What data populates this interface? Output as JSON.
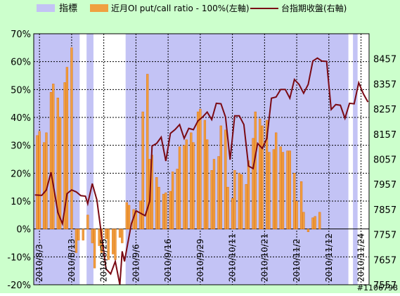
{
  "watermark": "#1106798",
  "colors": {
    "background": "#CCFFCC",
    "plot_background": "#FFFFFF",
    "indicator_band": "#C3C3F5",
    "bar": "#F0A040",
    "bar_edge": "#E07010",
    "line": "#7A0A14",
    "grid": "#000000",
    "text": "#000000"
  },
  "chart_data": {
    "type": "bar+line",
    "legend": {
      "position": "top",
      "entries": [
        {
          "label": "指標",
          "kind": "area"
        },
        {
          "label": "近月OI put/call ratio - 100%(左軸)",
          "kind": "bar"
        },
        {
          "label": "台指期收盤(右軸)",
          "kind": "line"
        }
      ]
    },
    "y_left": {
      "min": -20,
      "max": 70,
      "step": 10,
      "ticks": [
        "-20%",
        "-10%",
        "0%",
        "10%",
        "20%",
        "30%",
        "40%",
        "50%",
        "60%",
        "70%"
      ]
    },
    "y_right": {
      "min": 7557,
      "max": 8557,
      "step": 100,
      "ticks": [
        "7557",
        "7657",
        "7757",
        "7857",
        "7957",
        "8057",
        "8157",
        "8257",
        "8357",
        "8457"
      ]
    },
    "x_labels": [
      {
        "index": 2,
        "text": "2010/8/3"
      },
      {
        "index": 16,
        "text": "2010/8/13"
      },
      {
        "index": 30,
        "text": "2010/8/25"
      },
      {
        "index": 44,
        "text": "2010/9/6"
      },
      {
        "index": 58,
        "text": "2010/9/16"
      },
      {
        "index": 72,
        "text": "2010/9/29"
      },
      {
        "index": 86,
        "text": "2010/10/11"
      },
      {
        "index": 100,
        "text": "2010/10/21"
      },
      {
        "index": 114,
        "text": "2010/11/2"
      },
      {
        "index": 128,
        "text": "2010/11/12"
      },
      {
        "index": 142,
        "text": "2010/11/24"
      }
    ],
    "x_count": 146,
    "indicator_spans": [
      [
        0,
        19
      ],
      [
        23,
        25
      ],
      [
        40,
        136
      ],
      [
        139,
        140
      ]
    ],
    "bars": [
      {
        "i": 1,
        "v": 33.5
      },
      {
        "i": 2,
        "v": 35
      },
      {
        "i": 4,
        "v": 31
      },
      {
        "i": 5,
        "v": 34.5
      },
      {
        "i": 7,
        "v": 49
      },
      {
        "i": 8,
        "v": 52
      },
      {
        "i": 10,
        "v": 47
      },
      {
        "i": 11,
        "v": 40
      },
      {
        "i": 13,
        "v": 52.5
      },
      {
        "i": 14,
        "v": 58
      },
      {
        "i": 16,
        "v": 65
      },
      {
        "i": 18,
        "v": -8.5
      },
      {
        "i": 19,
        "v": -4
      },
      {
        "i": 21,
        "v": -4
      },
      {
        "i": 23,
        "v": 5
      },
      {
        "i": 25,
        "v": -5
      },
      {
        "i": 26,
        "v": -14
      },
      {
        "i": 28,
        "v": -6
      },
      {
        "i": 29,
        "v": -8.5
      },
      {
        "i": 31,
        "v": -3.5
      },
      {
        "i": 32,
        "v": -11
      },
      {
        "i": 34,
        "v": -9
      },
      {
        "i": 35,
        "v": -11
      },
      {
        "i": 37,
        "v": -3
      },
      {
        "i": 38,
        "v": -5
      },
      {
        "i": 40,
        "v": 9.5
      },
      {
        "i": 41,
        "v": 8.5
      },
      {
        "i": 43,
        "v": 7
      },
      {
        "i": 44,
        "v": 6
      },
      {
        "i": 46,
        "v": 10
      },
      {
        "i": 47,
        "v": 42
      },
      {
        "i": 49,
        "v": 55.5
      },
      {
        "i": 50,
        "v": 25
      },
      {
        "i": 51,
        "v": 26.5
      },
      {
        "i": 53,
        "v": 18.5
      },
      {
        "i": 54,
        "v": 15
      },
      {
        "i": 56,
        "v": 12.5
      },
      {
        "i": 57,
        "v": 13
      },
      {
        "i": 59,
        "v": 13.5
      },
      {
        "i": 60,
        "v": 20.5
      },
      {
        "i": 62,
        "v": 21.5
      },
      {
        "i": 63,
        "v": 29.5
      },
      {
        "i": 65,
        "v": 30
      },
      {
        "i": 66,
        "v": 32
      },
      {
        "i": 68,
        "v": 34.5
      },
      {
        "i": 69,
        "v": 31
      },
      {
        "i": 71,
        "v": 42
      },
      {
        "i": 72,
        "v": 43
      },
      {
        "i": 74,
        "v": 39
      },
      {
        "i": 75,
        "v": 32
      },
      {
        "i": 77,
        "v": 21
      },
      {
        "i": 78,
        "v": 25
      },
      {
        "i": 80,
        "v": 26
      },
      {
        "i": 81,
        "v": 37
      },
      {
        "i": 83,
        "v": 35.5
      },
      {
        "i": 84,
        "v": 15
      },
      {
        "i": 86,
        "v": 11
      },
      {
        "i": 87,
        "v": 21
      },
      {
        "i": 89,
        "v": 20
      },
      {
        "i": 90,
        "v": 19.5
      },
      {
        "i": 92,
        "v": 16
      },
      {
        "i": 93,
        "v": 24.5
      },
      {
        "i": 95,
        "v": 32.5
      },
      {
        "i": 96,
        "v": 42
      },
      {
        "i": 98,
        "v": 39.5
      },
      {
        "i": 99,
        "v": 37
      },
      {
        "i": 101,
        "v": 39
      },
      {
        "i": 102,
        "v": 27.5
      },
      {
        "i": 104,
        "v": 28.5
      },
      {
        "i": 105,
        "v": 34.5
      },
      {
        "i": 107,
        "v": 29.5
      },
      {
        "i": 108,
        "v": 27.5
      },
      {
        "i": 110,
        "v": 28
      },
      {
        "i": 111,
        "v": 28
      },
      {
        "i": 113,
        "v": 20
      },
      {
        "i": 114,
        "v": 10
      },
      {
        "i": 116,
        "v": 17
      },
      {
        "i": 117,
        "v": 6
      },
      {
        "i": 119,
        "v": -1
      },
      {
        "i": 121,
        "v": 4
      },
      {
        "i": 122,
        "v": 4.5
      },
      {
        "i": 124,
        "v": 6
      }
    ],
    "line_points": [
      {
        "i": 0,
        "v": 7915
      },
      {
        "i": 3,
        "v": 7913
      },
      {
        "i": 5,
        "v": 7935
      },
      {
        "i": 7,
        "v": 8005
      },
      {
        "i": 8,
        "v": 7955
      },
      {
        "i": 10,
        "v": 7845
      },
      {
        "i": 12,
        "v": 7800
      },
      {
        "i": 14,
        "v": 7920
      },
      {
        "i": 16,
        "v": 7935
      },
      {
        "i": 18,
        "v": 7927
      },
      {
        "i": 20,
        "v": 7912
      },
      {
        "i": 22,
        "v": 7910
      },
      {
        "i": 23,
        "v": 7880
      },
      {
        "i": 25,
        "v": 7960
      },
      {
        "i": 27,
        "v": 7895
      },
      {
        "i": 29,
        "v": 7755
      },
      {
        "i": 31,
        "v": 7620
      },
      {
        "i": 33,
        "v": 7600
      },
      {
        "i": 35,
        "v": 7650
      },
      {
        "i": 37,
        "v": 7557
      },
      {
        "i": 38,
        "v": 7690
      },
      {
        "i": 39,
        "v": 7650
      },
      {
        "i": 40,
        "v": 7700
      },
      {
        "i": 42,
        "v": 7800
      },
      {
        "i": 44,
        "v": 7852
      },
      {
        "i": 46,
        "v": 7842
      },
      {
        "i": 48,
        "v": 7832
      },
      {
        "i": 50,
        "v": 7890
      },
      {
        "i": 51,
        "v": 8110
      },
      {
        "i": 53,
        "v": 8120
      },
      {
        "i": 55,
        "v": 8145
      },
      {
        "i": 57,
        "v": 8050
      },
      {
        "i": 59,
        "v": 8160
      },
      {
        "i": 61,
        "v": 8175
      },
      {
        "i": 63,
        "v": 8195
      },
      {
        "i": 65,
        "v": 8140
      },
      {
        "i": 67,
        "v": 8180
      },
      {
        "i": 69,
        "v": 8175
      },
      {
        "i": 71,
        "v": 8210
      },
      {
        "i": 73,
        "v": 8225
      },
      {
        "i": 75,
        "v": 8245
      },
      {
        "i": 77,
        "v": 8215
      },
      {
        "i": 79,
        "v": 8280
      },
      {
        "i": 81,
        "v": 8278
      },
      {
        "i": 83,
        "v": 8225
      },
      {
        "i": 85,
        "v": 8055
      },
      {
        "i": 87,
        "v": 8230
      },
      {
        "i": 89,
        "v": 8230
      },
      {
        "i": 91,
        "v": 8195
      },
      {
        "i": 93,
        "v": 8030
      },
      {
        "i": 95,
        "v": 8020
      },
      {
        "i": 97,
        "v": 8120
      },
      {
        "i": 99,
        "v": 8100
      },
      {
        "i": 101,
        "v": 8140
      },
      {
        "i": 103,
        "v": 8300
      },
      {
        "i": 105,
        "v": 8305
      },
      {
        "i": 107,
        "v": 8335
      },
      {
        "i": 109,
        "v": 8335
      },
      {
        "i": 111,
        "v": 8300
      },
      {
        "i": 113,
        "v": 8375
      },
      {
        "i": 115,
        "v": 8355
      },
      {
        "i": 117,
        "v": 8320
      },
      {
        "i": 119,
        "v": 8355
      },
      {
        "i": 121,
        "v": 8448
      },
      {
        "i": 123,
        "v": 8460
      },
      {
        "i": 125,
        "v": 8448
      },
      {
        "i": 127,
        "v": 8447
      },
      {
        "i": 129,
        "v": 8255
      },
      {
        "i": 131,
        "v": 8275
      },
      {
        "i": 133,
        "v": 8272
      },
      {
        "i": 135,
        "v": 8220
      },
      {
        "i": 137,
        "v": 8280
      },
      {
        "i": 139,
        "v": 8278
      },
      {
        "i": 141,
        "v": 8362
      },
      {
        "i": 143,
        "v": 8318
      },
      {
        "i": 145,
        "v": 8285
      }
    ]
  }
}
